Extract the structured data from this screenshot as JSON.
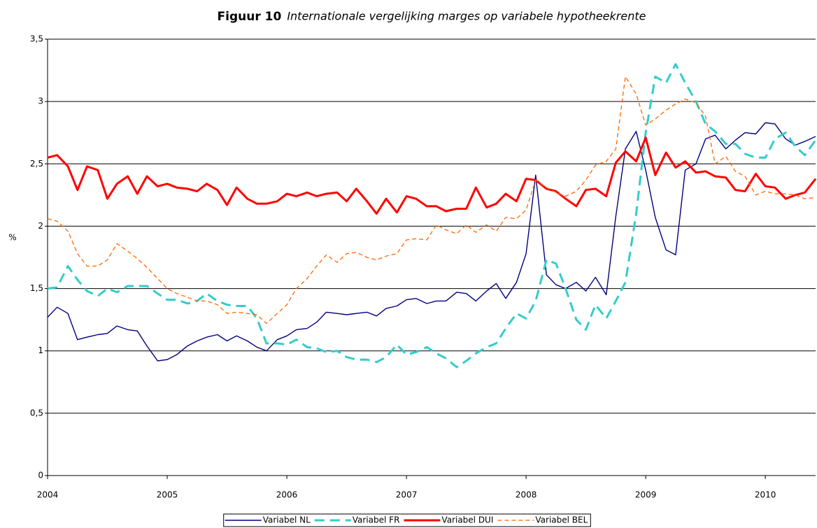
{
  "chart_data": {
    "type": "line",
    "title": "Figuur 10",
    "subtitle": "Internationale vergelijking marges op variabele hypotheekrente",
    "y_label": "%",
    "x": [
      2004,
      2004.08,
      2004.17,
      2004.25,
      2004.33,
      2004.42,
      2004.5,
      2004.58,
      2004.67,
      2004.75,
      2004.83,
      2004.92,
      2005,
      2005.08,
      2005.17,
      2005.25,
      2005.33,
      2005.42,
      2005.5,
      2005.58,
      2005.67,
      2005.75,
      2005.83,
      2005.92,
      2006,
      2006.08,
      2006.17,
      2006.25,
      2006.33,
      2006.42,
      2006.5,
      2006.58,
      2006.67,
      2006.75,
      2006.83,
      2006.92,
      2007,
      2007.08,
      2007.17,
      2007.25,
      2007.33,
      2007.42,
      2007.5,
      2007.58,
      2007.67,
      2007.75,
      2007.83,
      2007.92,
      2008,
      2008.08,
      2008.17,
      2008.25,
      2008.33,
      2008.42,
      2008.5,
      2008.58,
      2008.67,
      2008.75,
      2008.83,
      2008.92,
      2009,
      2009.08,
      2009.17,
      2009.25,
      2009.33,
      2009.42,
      2009.5,
      2009.58,
      2009.67,
      2009.75,
      2009.83,
      2009.92,
      2010,
      2010.08,
      2010.17,
      2010.25,
      2010.33,
      2010.42
    ],
    "series": [
      {
        "name": "Variabel NL",
        "color": "#000080",
        "style": "solid",
        "values": [
          1.27,
          1.35,
          1.3,
          1.09,
          1.11,
          1.13,
          1.14,
          1.2,
          1.17,
          1.16,
          1.04,
          0.92,
          0.93,
          0.97,
          1.04,
          1.08,
          1.11,
          1.13,
          1.08,
          1.12,
          1.08,
          1.03,
          1.0,
          1.09,
          1.12,
          1.17,
          1.18,
          1.23,
          1.31,
          1.3,
          1.29,
          1.3,
          1.31,
          1.28,
          1.34,
          1.36,
          1.41,
          1.42,
          1.38,
          1.4,
          1.4,
          1.47,
          1.46,
          1.4,
          1.48,
          1.54,
          1.42,
          1.55,
          1.78,
          2.41,
          1.61,
          1.53,
          1.5,
          1.55,
          1.48,
          1.59,
          1.45,
          2.08,
          2.62,
          2.76,
          2.45,
          2.07,
          1.81,
          1.77,
          2.45,
          2.5,
          2.7,
          2.73,
          2.62,
          2.69,
          2.75,
          2.74,
          2.83,
          2.82,
          2.7,
          2.65,
          2.68,
          2.72
        ]
      },
      {
        "name": "Variabel FR",
        "color": "#33CCCC",
        "style": "dashed",
        "values": [
          1.5,
          1.51,
          1.68,
          1.57,
          1.48,
          1.44,
          1.5,
          1.47,
          1.52,
          1.52,
          1.52,
          1.46,
          1.41,
          1.41,
          1.38,
          1.4,
          1.46,
          1.4,
          1.37,
          1.36,
          1.36,
          1.26,
          1.06,
          1.06,
          1.05,
          1.09,
          1.03,
          1.02,
          0.99,
          1.0,
          0.95,
          0.93,
          0.93,
          0.91,
          0.95,
          1.05,
          0.97,
          0.99,
          1.03,
          0.98,
          0.94,
          0.87,
          0.92,
          0.98,
          1.03,
          1.06,
          1.18,
          1.3,
          1.26,
          1.4,
          1.73,
          1.7,
          1.5,
          1.25,
          1.17,
          1.37,
          1.26,
          1.4,
          1.55,
          2.1,
          2.75,
          3.2,
          3.15,
          3.3,
          3.15,
          3.0,
          2.82,
          2.76,
          2.66,
          2.66,
          2.58,
          2.55,
          2.55,
          2.7,
          2.75,
          2.64,
          2.57,
          2.69
        ]
      },
      {
        "name": "Variabel DUI",
        "color": "#FF0000",
        "style": "solid",
        "values": [
          2.55,
          2.57,
          2.48,
          2.29,
          2.48,
          2.45,
          2.22,
          2.34,
          2.4,
          2.26,
          2.4,
          2.32,
          2.34,
          2.31,
          2.3,
          2.28,
          2.34,
          2.29,
          2.17,
          2.31,
          2.22,
          2.18,
          2.18,
          2.2,
          2.26,
          2.24,
          2.27,
          2.24,
          2.26,
          2.27,
          2.2,
          2.3,
          2.2,
          2.1,
          2.22,
          2.11,
          2.24,
          2.22,
          2.16,
          2.16,
          2.12,
          2.14,
          2.14,
          2.31,
          2.15,
          2.18,
          2.26,
          2.2,
          2.38,
          2.37,
          2.3,
          2.28,
          2.22,
          2.16,
          2.29,
          2.3,
          2.24,
          2.51,
          2.6,
          2.52,
          2.71,
          2.41,
          2.59,
          2.47,
          2.52,
          2.43,
          2.44,
          2.4,
          2.39,
          2.29,
          2.28,
          2.42,
          2.32,
          2.31,
          2.22,
          2.25,
          2.27,
          2.38
        ]
      },
      {
        "name": "Variabel BEL",
        "color": "#FF6600",
        "style": "dashed",
        "values": [
          2.06,
          2.04,
          1.96,
          1.78,
          1.68,
          1.68,
          1.73,
          1.86,
          1.8,
          1.74,
          1.67,
          1.58,
          1.5,
          1.46,
          1.43,
          1.4,
          1.4,
          1.37,
          1.3,
          1.31,
          1.3,
          1.29,
          1.22,
          1.3,
          1.37,
          1.5,
          1.58,
          1.68,
          1.77,
          1.71,
          1.78,
          1.79,
          1.75,
          1.73,
          1.76,
          1.78,
          1.89,
          1.9,
          1.89,
          2.01,
          1.97,
          1.94,
          2.01,
          1.95,
          2.01,
          1.96,
          2.07,
          2.06,
          2.13,
          2.37,
          2.31,
          2.27,
          2.24,
          2.28,
          2.37,
          2.49,
          2.52,
          2.62,
          3.2,
          3.06,
          2.81,
          2.86,
          2.93,
          2.98,
          3.02,
          2.99,
          2.88,
          2.5,
          2.56,
          2.44,
          2.4,
          2.25,
          2.28,
          2.26,
          2.26,
          2.25,
          2.22,
          2.23
        ]
      }
    ],
    "xlim": [
      2004,
      2010.42
    ],
    "xticks": [
      2004,
      2005,
      2006,
      2007,
      2008,
      2009,
      2010
    ],
    "ylim": [
      0,
      3.5
    ],
    "yticks": [
      0,
      {
        "value": 0.5,
        "label": "0,5"
      },
      1,
      {
        "value": 1.5,
        "label": "1,5"
      },
      2,
      {
        "value": 2.5,
        "label": "2,5"
      },
      3,
      {
        "value": 3.5,
        "label": "3,5"
      }
    ],
    "grid": true,
    "legend": "bottom"
  }
}
